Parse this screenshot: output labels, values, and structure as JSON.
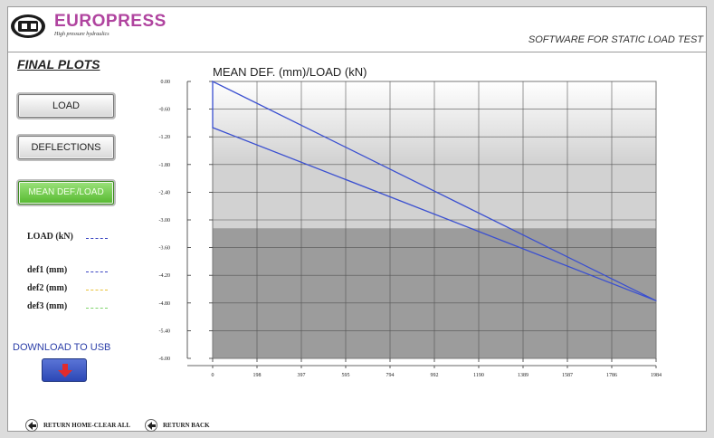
{
  "header": {
    "brand_name": "EUROPRESS",
    "brand_tagline": "High pressure hydraulics",
    "app_title": "SOFTWARE FOR STATIC LOAD TEST"
  },
  "sidebar": {
    "section_title": "FINAL PLOTS",
    "buttons": [
      {
        "label": "LOAD",
        "active": false
      },
      {
        "label": "DEFLECTIONS",
        "active": false
      },
      {
        "label": "MEAN DEF./LOAD",
        "active": true
      }
    ],
    "legend": [
      {
        "label": "LOAD (kN)",
        "color": "#3a45c2"
      },
      {
        "label": "def1 (mm)",
        "color": "#3a45c2"
      },
      {
        "label": "def2 (mm)",
        "color": "#e8c23a"
      },
      {
        "label": "def3 (mm)",
        "color": "#7fd36a"
      }
    ],
    "download_label": "DOWNLOAD TO USB",
    "download_icon": "down-arrow-icon"
  },
  "footer": {
    "return_home_label": "RETURN HOME-CLEAR ALL",
    "return_back_label": "RETURN BACK",
    "icon": "left-arrow-icon"
  },
  "chart_data": {
    "type": "line",
    "title": "MEAN DEF. (mm)/LOAD (kN)",
    "xlabel": "",
    "ylabel": "",
    "xlim": [
      0,
      1984
    ],
    "ylim": [
      -6.0,
      0.0
    ],
    "x_ticks": [
      "0",
      "198",
      "397",
      "595",
      "794",
      "992",
      "1190",
      "1389",
      "1587",
      "1786",
      "1984"
    ],
    "y_ticks": [
      "0.00",
      "-0.60",
      "-1.20",
      "-1.80",
      "-2.40",
      "-3.00",
      "-3.60",
      "-4.20",
      "-4.80",
      "-5.40",
      "-6.00"
    ],
    "grid": true,
    "series": [
      {
        "color": "#3a4fd0",
        "x": [
          0,
          0,
          1984,
          0,
          0
        ],
        "y": [
          0.0,
          -1.0,
          -4.75,
          0.0,
          -1.0
        ]
      }
    ]
  }
}
